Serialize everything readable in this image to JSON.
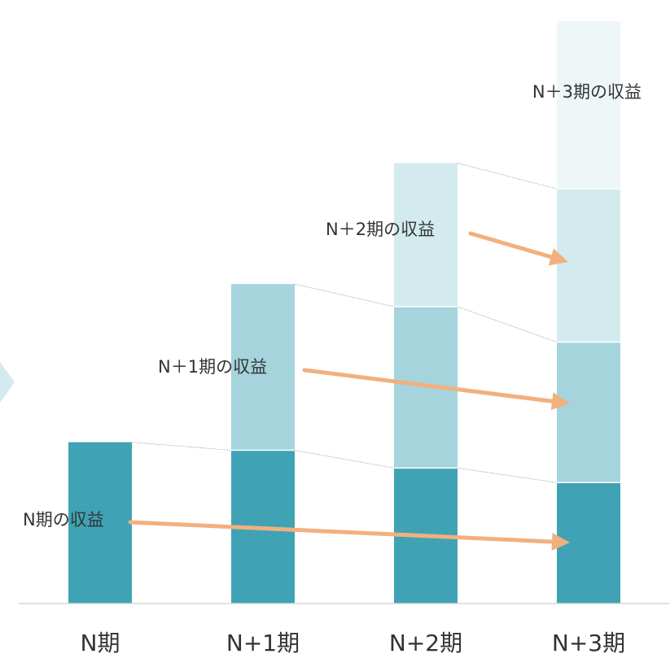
{
  "chart_data": {
    "type": "bar",
    "stacked": true,
    "categories": [
      "N期",
      "N+1期",
      "N+2期",
      "N+3期"
    ],
    "series": [
      {
        "name": "N期の収益",
        "values": [
          1.0,
          0.95,
          0.84,
          0.75
        ],
        "color": "#3fa3b5"
      },
      {
        "name": "N+1期の収益",
        "values": [
          0,
          1.03,
          1.0,
          0.87
        ],
        "color": "#a5d4dd"
      },
      {
        "name": "N+2期の収益",
        "values": [
          0,
          0,
          0.89,
          0.95
        ],
        "color": "#d3ebef"
      },
      {
        "name": "N+3期の収益",
        "values": [
          0,
          0,
          0,
          1.04
        ],
        "color": "#eef6f8"
      }
    ],
    "ylim": [
      0,
      3.7
    ],
    "title": "",
    "xlabel": "",
    "ylabel": "",
    "grid": false,
    "annotations": [
      {
        "text": "N期の収益",
        "from_category": 0,
        "to_category": 3,
        "series": 0
      },
      {
        "text": "N＋1期の収益",
        "from_category": 1,
        "to_category": 3,
        "series": 1
      },
      {
        "text": "N＋2期の収益",
        "from_category": 2,
        "to_category": 3,
        "series": 2
      },
      {
        "text": "N＋3期の収益",
        "from_category": 3,
        "to_category": 3,
        "series": 3
      }
    ],
    "arrow_color": "#f2b07e",
    "connector_color": "#999999",
    "axis_color": "#d9d9d9",
    "side_shape_color": "#d3ebef"
  }
}
